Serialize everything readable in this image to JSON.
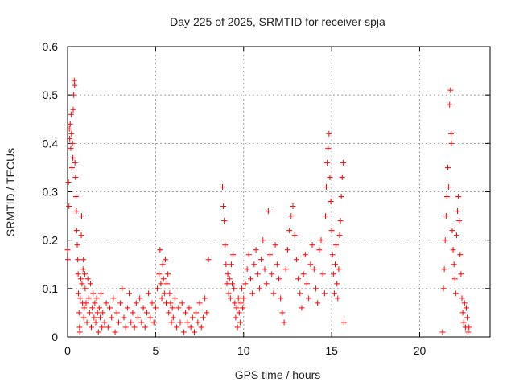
{
  "chart_data": {
    "type": "scatter",
    "title": "Day 225 of 2025, SRMTID for receiver spja",
    "xlabel": "GPS time / hours",
    "ylabel": "SRMTID / TECUs",
    "xlim": [
      0,
      24
    ],
    "ylim": [
      0,
      0.6
    ],
    "xticks": [
      0,
      5,
      10,
      15,
      20
    ],
    "xtick_labels": [
      "0",
      "5",
      "10",
      "15",
      "20"
    ],
    "yticks": [
      0,
      0.1,
      0.2,
      0.3,
      0.4,
      0.5,
      0.6
    ],
    "ytick_labels": [
      "0",
      "0.1",
      "0.2",
      "0.3",
      "0.4",
      "0.5",
      "0.6"
    ],
    "grid": true,
    "marker": "+",
    "color": "#ff0000",
    "series": [
      {
        "name": "SRMTID",
        "points": [
          [
            0.0,
            0.18
          ],
          [
            0.02,
            0.16
          ],
          [
            0.05,
            0.32
          ],
          [
            0.08,
            0.27
          ],
          [
            0.1,
            0.43
          ],
          [
            0.12,
            0.41
          ],
          [
            0.15,
            0.44
          ],
          [
            0.18,
            0.39
          ],
          [
            0.2,
            0.46
          ],
          [
            0.22,
            0.42
          ],
          [
            0.25,
            0.35
          ],
          [
            0.28,
            0.4
          ],
          [
            0.3,
            0.37
          ],
          [
            0.32,
            0.47
          ],
          [
            0.35,
            0.5
          ],
          [
            0.38,
            0.53
          ],
          [
            0.4,
            0.52
          ],
          [
            0.42,
            0.36
          ],
          [
            0.45,
            0.33
          ],
          [
            0.48,
            0.29
          ],
          [
            0.5,
            0.26
          ],
          [
            0.52,
            0.22
          ],
          [
            0.55,
            0.19
          ],
          [
            0.58,
            0.16
          ],
          [
            0.6,
            0.13
          ],
          [
            0.62,
            0.09
          ],
          [
            0.65,
            0.05
          ],
          [
            0.68,
            0.02
          ],
          [
            0.7,
            0.01
          ],
          [
            0.72,
            0.08
          ],
          [
            0.75,
            0.12
          ],
          [
            0.78,
            0.21
          ],
          [
            0.8,
            0.25
          ],
          [
            0.82,
            0.11
          ],
          [
            0.85,
            0.07
          ],
          [
            0.88,
            0.14
          ],
          [
            0.9,
            0.16
          ],
          [
            0.92,
            0.04
          ],
          [
            0.95,
            0.06
          ],
          [
            0.98,
            0.13
          ],
          [
            1.0,
            0.1
          ],
          [
            1.05,
            0.07
          ],
          [
            1.1,
            0.03
          ],
          [
            1.15,
            0.12
          ],
          [
            1.2,
            0.08
          ],
          [
            1.25,
            0.05
          ],
          [
            1.3,
            0.11
          ],
          [
            1.35,
            0.02
          ],
          [
            1.4,
            0.06
          ],
          [
            1.45,
            0.09
          ],
          [
            1.5,
            0.04
          ],
          [
            1.55,
            0.07
          ],
          [
            1.6,
            0.03
          ],
          [
            1.65,
            0.08
          ],
          [
            1.7,
            0.05
          ],
          [
            1.75,
            0.01
          ],
          [
            1.8,
            0.06
          ],
          [
            1.85,
            0.04
          ],
          [
            1.9,
            0.09
          ],
          [
            1.95,
            0.02
          ],
          [
            2.0,
            0.05
          ],
          [
            2.1,
            0.03
          ],
          [
            2.2,
            0.07
          ],
          [
            2.3,
            0.02
          ],
          [
            2.4,
            0.06
          ],
          [
            2.5,
            0.04
          ],
          [
            2.6,
            0.08
          ],
          [
            2.7,
            0.01
          ],
          [
            2.8,
            0.05
          ],
          [
            2.9,
            0.03
          ],
          [
            3.0,
            0.07
          ],
          [
            3.1,
            0.1
          ],
          [
            3.2,
            0.04
          ],
          [
            3.3,
            0.02
          ],
          [
            3.4,
            0.06
          ],
          [
            3.5,
            0.09
          ],
          [
            3.6,
            0.03
          ],
          [
            3.7,
            0.05
          ],
          [
            3.8,
            0.02
          ],
          [
            3.9,
            0.07
          ],
          [
            4.0,
            0.04
          ],
          [
            4.1,
            0.08
          ],
          [
            4.2,
            0.03
          ],
          [
            4.3,
            0.06
          ],
          [
            4.4,
            0.02
          ],
          [
            4.5,
            0.05
          ],
          [
            4.6,
            0.09
          ],
          [
            4.7,
            0.04
          ],
          [
            4.8,
            0.07
          ],
          [
            4.9,
            0.03
          ],
          [
            5.0,
            0.06
          ],
          [
            5.1,
            0.1
          ],
          [
            5.2,
            0.13
          ],
          [
            5.25,
            0.18
          ],
          [
            5.3,
            0.11
          ],
          [
            5.35,
            0.08
          ],
          [
            5.4,
            0.15
          ],
          [
            5.45,
            0.12
          ],
          [
            5.5,
            0.09
          ],
          [
            5.55,
            0.16
          ],
          [
            5.6,
            0.07
          ],
          [
            5.65,
            0.11
          ],
          [
            5.7,
            0.13
          ],
          [
            5.75,
            0.05
          ],
          [
            5.8,
            0.09
          ],
          [
            5.85,
            0.07
          ],
          [
            5.9,
            0.03
          ],
          [
            5.95,
            0.06
          ],
          [
            6.0,
            0.04
          ],
          [
            6.1,
            0.08
          ],
          [
            6.2,
            0.02
          ],
          [
            6.3,
            0.06
          ],
          [
            6.4,
            0.03
          ],
          [
            6.5,
            0.07
          ],
          [
            6.6,
            0.01
          ],
          [
            6.7,
            0.05
          ],
          [
            6.8,
            0.03
          ],
          [
            6.9,
            0.06
          ],
          [
            7.0,
            0.02
          ],
          [
            7.1,
            0.04
          ],
          [
            7.2,
            0.01
          ],
          [
            7.3,
            0.05
          ],
          [
            7.4,
            0.03
          ],
          [
            7.5,
            0.07
          ],
          [
            7.6,
            0.02
          ],
          [
            7.7,
            0.04
          ],
          [
            7.8,
            0.08
          ],
          [
            7.9,
            0.05
          ],
          [
            8.0,
            0.16
          ],
          [
            8.8,
            0.31
          ],
          [
            8.85,
            0.27
          ],
          [
            8.9,
            0.24
          ],
          [
            8.95,
            0.19
          ],
          [
            9.0,
            0.15
          ],
          [
            9.05,
            0.11
          ],
          [
            9.1,
            0.13
          ],
          [
            9.15,
            0.09
          ],
          [
            9.2,
            0.12
          ],
          [
            9.25,
            0.08
          ],
          [
            9.3,
            0.15
          ],
          [
            9.35,
            0.11
          ],
          [
            9.4,
            0.17
          ],
          [
            9.45,
            0.1
          ],
          [
            9.5,
            0.07
          ],
          [
            9.55,
            0.04
          ],
          [
            9.6,
            0.06
          ],
          [
            9.65,
            0.02
          ],
          [
            9.7,
            0.08
          ],
          [
            9.75,
            0.05
          ],
          [
            9.8,
            0.03
          ],
          [
            9.85,
            0.07
          ],
          [
            9.9,
            0.1
          ],
          [
            9.95,
            0.06
          ],
          [
            10.0,
            0.08
          ],
          [
            10.1,
            0.11
          ],
          [
            10.2,
            0.14
          ],
          [
            10.3,
            0.17
          ],
          [
            10.4,
            0.12
          ],
          [
            10.5,
            0.09
          ],
          [
            10.6,
            0.15
          ],
          [
            10.7,
            0.18
          ],
          [
            10.8,
            0.13
          ],
          [
            10.9,
            0.1
          ],
          [
            11.0,
            0.16
          ],
          [
            11.1,
            0.2
          ],
          [
            11.2,
            0.14
          ],
          [
            11.3,
            0.11
          ],
          [
            11.4,
            0.26
          ],
          [
            11.5,
            0.17
          ],
          [
            11.6,
            0.13
          ],
          [
            11.7,
            0.09
          ],
          [
            11.8,
            0.19
          ],
          [
            11.9,
            0.15
          ],
          [
            12.0,
            0.12
          ],
          [
            12.1,
            0.08
          ],
          [
            12.2,
            0.05
          ],
          [
            12.3,
            0.03
          ],
          [
            12.4,
            0.14
          ],
          [
            12.5,
            0.18
          ],
          [
            12.6,
            0.22
          ],
          [
            12.7,
            0.25
          ],
          [
            12.8,
            0.27
          ],
          [
            12.9,
            0.21
          ],
          [
            13.0,
            0.16
          ],
          [
            13.1,
            0.12
          ],
          [
            13.2,
            0.09
          ],
          [
            13.3,
            0.06
          ],
          [
            13.4,
            0.13
          ],
          [
            13.5,
            0.17
          ],
          [
            13.6,
            0.11
          ],
          [
            13.7,
            0.08
          ],
          [
            13.8,
            0.15
          ],
          [
            13.9,
            0.19
          ],
          [
            14.0,
            0.14
          ],
          [
            14.1,
            0.1
          ],
          [
            14.2,
            0.07
          ],
          [
            14.3,
            0.18
          ],
          [
            14.4,
            0.2
          ],
          [
            14.5,
            0.13
          ],
          [
            14.6,
            0.09
          ],
          [
            14.65,
            0.25
          ],
          [
            14.7,
            0.31
          ],
          [
            14.75,
            0.36
          ],
          [
            14.8,
            0.39
          ],
          [
            14.85,
            0.42
          ],
          [
            14.9,
            0.33
          ],
          [
            14.95,
            0.28
          ],
          [
            15.0,
            0.22
          ],
          [
            15.05,
            0.17
          ],
          [
            15.1,
            0.13
          ],
          [
            15.15,
            0.09
          ],
          [
            15.2,
            0.15
          ],
          [
            15.25,
            0.19
          ],
          [
            15.3,
            0.11
          ],
          [
            15.35,
            0.08
          ],
          [
            15.4,
            0.14
          ],
          [
            15.45,
            0.21
          ],
          [
            15.5,
            0.24
          ],
          [
            15.55,
            0.29
          ],
          [
            15.6,
            0.33
          ],
          [
            15.65,
            0.36
          ],
          [
            15.7,
            0.03
          ],
          [
            21.3,
            0.01
          ],
          [
            21.35,
            0.1
          ],
          [
            21.4,
            0.14
          ],
          [
            21.45,
            0.2
          ],
          [
            21.5,
            0.25
          ],
          [
            21.55,
            0.29
          ],
          [
            21.6,
            0.35
          ],
          [
            21.65,
            0.31
          ],
          [
            21.7,
            0.48
          ],
          [
            21.75,
            0.51
          ],
          [
            21.78,
            0.42
          ],
          [
            21.8,
            0.4
          ],
          [
            21.85,
            0.22
          ],
          [
            21.9,
            0.18
          ],
          [
            21.95,
            0.15
          ],
          [
            22.0,
            0.12
          ],
          [
            22.05,
            0.09
          ],
          [
            22.1,
            0.21
          ],
          [
            22.15,
            0.26
          ],
          [
            22.2,
            0.29
          ],
          [
            22.25,
            0.24
          ],
          [
            22.3,
            0.17
          ],
          [
            22.35,
            0.13
          ],
          [
            22.4,
            0.08
          ],
          [
            22.45,
            0.05
          ],
          [
            22.5,
            0.03
          ],
          [
            22.55,
            0.07
          ],
          [
            22.6,
            0.02
          ],
          [
            22.65,
            0.06
          ],
          [
            22.7,
            0.04
          ],
          [
            22.75,
            0.01
          ],
          [
            22.8,
            0.02
          ]
        ]
      }
    ]
  }
}
